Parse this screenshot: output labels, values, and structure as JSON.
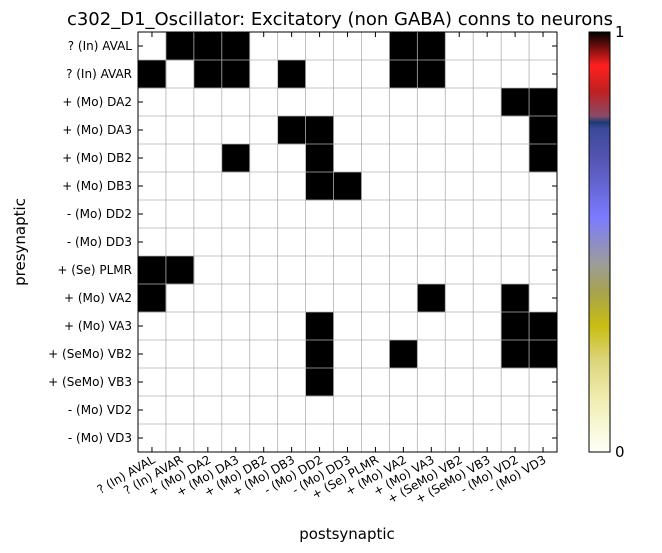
{
  "chart_data": {
    "type": "heatmap",
    "title": "c302_D1_Oscillator: Excitatory (non GABA) conns to neurons",
    "xlabel": "postsynaptic",
    "ylabel": "presynaptic",
    "x_categories": [
      "? (In) AVAL",
      "? (In) AVAR",
      "+ (Mo) DA2",
      "+ (Mo) DA3",
      "+ (Mo) DB2",
      "+ (Mo) DB3",
      "- (Mo) DD2",
      "- (Mo) DD3",
      "+ (Se) PLMR",
      "+ (Mo) VA2",
      "+ (Mo) VA3",
      "+ (SeMo) VB2",
      "+ (SeMo) VB3",
      "- (Mo) VD2",
      "- (Mo) VD3"
    ],
    "y_categories": [
      "? (In) AVAL",
      "? (In) AVAR",
      "+ (Mo) DA2",
      "+ (Mo) DA3",
      "+ (Mo) DB2",
      "+ (Mo) DB3",
      "- (Mo) DD2",
      "- (Mo) DD3",
      "+ (Se) PLMR",
      "+ (Mo) VA2",
      "+ (Mo) VA3",
      "+ (SeMo) VB2",
      "+ (SeMo) VB3",
      "- (Mo) VD2",
      "- (Mo) VD3"
    ],
    "values": [
      [
        0,
        1,
        1,
        1,
        0,
        0,
        0,
        0,
        0,
        1,
        1,
        0,
        0,
        0,
        0
      ],
      [
        1,
        0,
        1,
        1,
        0,
        1,
        0,
        0,
        0,
        1,
        1,
        0,
        0,
        0,
        0
      ],
      [
        0,
        0,
        0,
        0,
        0,
        0,
        0,
        0,
        0,
        0,
        0,
        0,
        0,
        1,
        1
      ],
      [
        0,
        0,
        0,
        0,
        0,
        1,
        1,
        0,
        0,
        0,
        0,
        0,
        0,
        0,
        1
      ],
      [
        0,
        0,
        0,
        1,
        0,
        0,
        1,
        0,
        0,
        0,
        0,
        0,
        0,
        0,
        1
      ],
      [
        0,
        0,
        0,
        0,
        0,
        0,
        1,
        1,
        0,
        0,
        0,
        0,
        0,
        0,
        0
      ],
      [
        0,
        0,
        0,
        0,
        0,
        0,
        0,
        0,
        0,
        0,
        0,
        0,
        0,
        0,
        0
      ],
      [
        0,
        0,
        0,
        0,
        0,
        0,
        0,
        0,
        0,
        0,
        0,
        0,
        0,
        0,
        0
      ],
      [
        1,
        1,
        0,
        0,
        0,
        0,
        0,
        0,
        0,
        0,
        0,
        0,
        0,
        0,
        0
      ],
      [
        1,
        0,
        0,
        0,
        0,
        0,
        0,
        0,
        0,
        0,
        1,
        0,
        0,
        1,
        0
      ],
      [
        0,
        0,
        0,
        0,
        0,
        0,
        1,
        0,
        0,
        0,
        0,
        0,
        0,
        1,
        1
      ],
      [
        0,
        0,
        0,
        0,
        0,
        0,
        1,
        0,
        0,
        1,
        0,
        0,
        0,
        1,
        1
      ],
      [
        0,
        0,
        0,
        0,
        0,
        0,
        1,
        0,
        0,
        0,
        0,
        0,
        0,
        0,
        0
      ],
      [
        0,
        0,
        0,
        0,
        0,
        0,
        0,
        0,
        0,
        0,
        0,
        0,
        0,
        0,
        0
      ],
      [
        0,
        0,
        0,
        0,
        0,
        0,
        0,
        0,
        0,
        0,
        0,
        0,
        0,
        0,
        0
      ]
    ],
    "colorbar": {
      "min": 0,
      "max": 1,
      "min_label": "0",
      "max_label": "1",
      "colormap": "gist_stern_r-like"
    },
    "grid": true
  }
}
